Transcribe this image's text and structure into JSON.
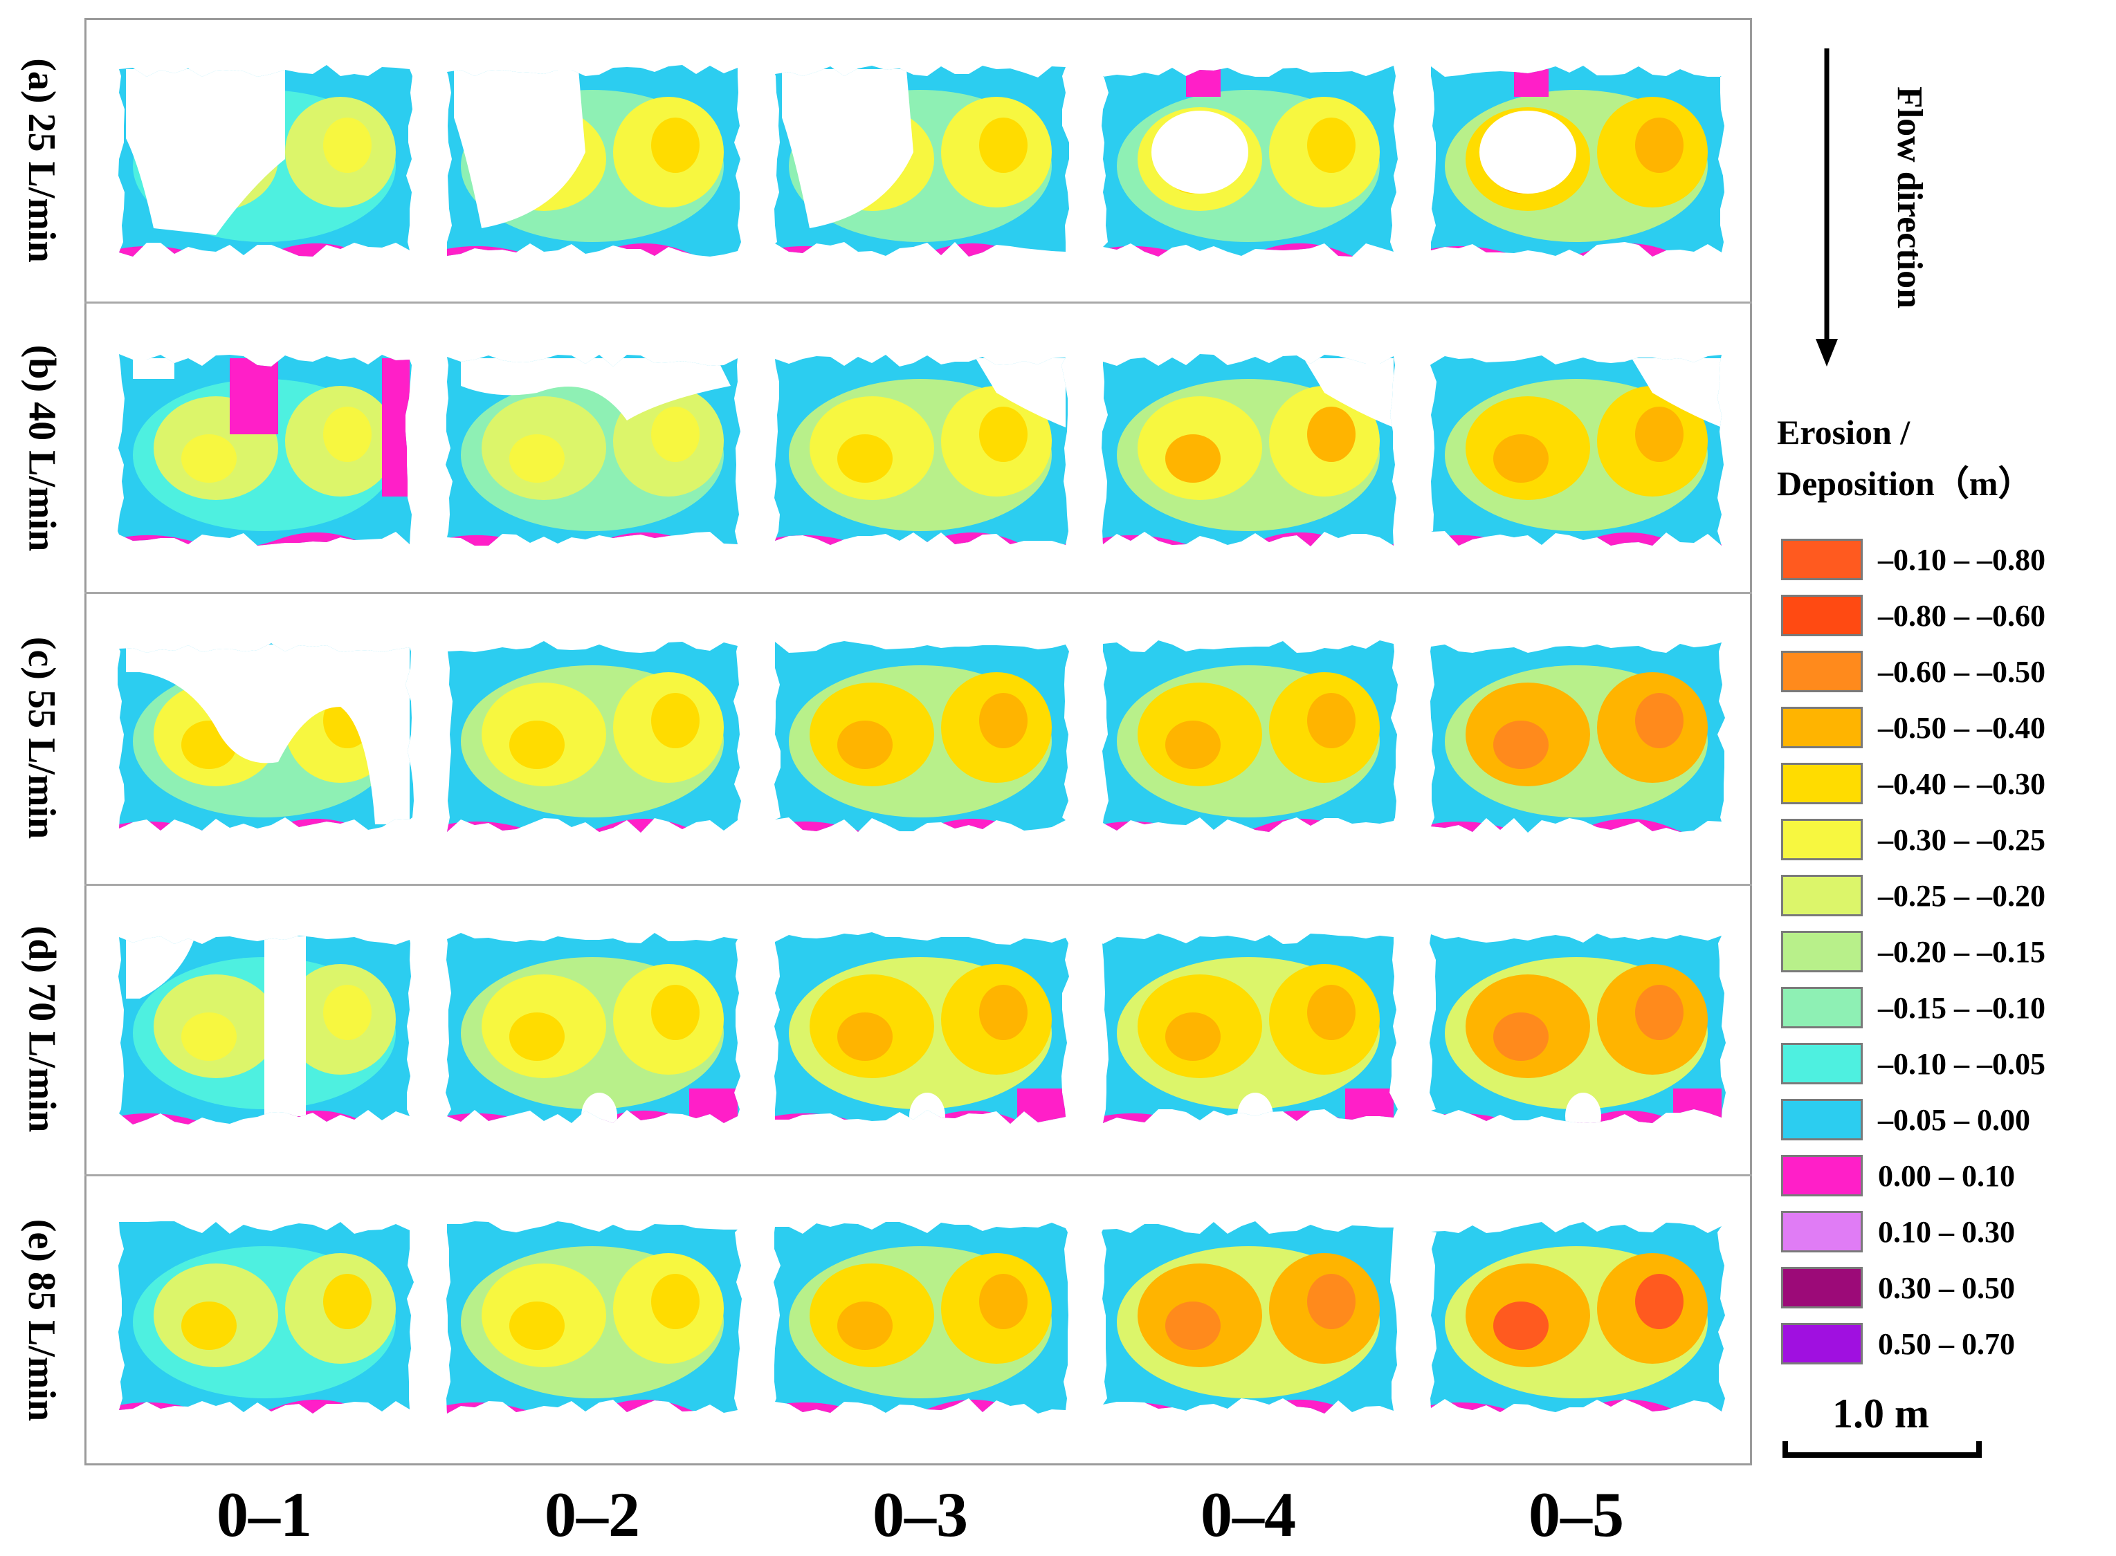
{
  "figure": {
    "rows": [
      {
        "label": "(a) 25 L/min"
      },
      {
        "label": "(b) 40 L/min"
      },
      {
        "label": "(c) 55 L/min"
      },
      {
        "label": "(d) 70 L/min"
      },
      {
        "label": "(e) 85 L/min"
      }
    ],
    "columns": [
      {
        "label": "0–1"
      },
      {
        "label": "0–2"
      },
      {
        "label": "0–3"
      },
      {
        "label": "0–4"
      },
      {
        "label": "0–5"
      }
    ],
    "flow_direction": "Flow direction",
    "legend": {
      "title_line1": "Erosion /",
      "title_line2": "Deposition（m）",
      "items": [
        {
          "label": "–0.10 – –0.80",
          "color": "#ff5a1f"
        },
        {
          "label": "–0.80 – –0.60",
          "color": "#ff4a12"
        },
        {
          "label": "–0.60 – –0.50",
          "color": "#ff8a1c"
        },
        {
          "label": "–0.50 – –0.40",
          "color": "#ffb400"
        },
        {
          "label": "–0.40 – –0.30",
          "color": "#ffdc00"
        },
        {
          "label": "–0.30 – –0.25",
          "color": "#f7f740"
        },
        {
          "label": "–0.25 – –0.20",
          "color": "#dcf56a"
        },
        {
          "label": "–0.20 – –0.15",
          "color": "#b8f08a"
        },
        {
          "label": "–0.15 – –0.10",
          "color": "#8ef0b4"
        },
        {
          "label": "–0.10 – –0.05",
          "color": "#4ef0e0"
        },
        {
          "label": "–0.05 – 0.00",
          "color": "#2ccdf0"
        },
        {
          "label": "0.00 – 0.10",
          "color": "#ff1fc8"
        },
        {
          "label": "0.10 – 0.30",
          "color": "#e07cf5"
        },
        {
          "label": "0.30 – 0.50",
          "color": "#9c0a78"
        },
        {
          "label": "0.50 – 0.70",
          "color": "#a010e0"
        }
      ]
    },
    "scale_bar": {
      "label": "1.0 m"
    },
    "maps": [
      [
        {
          "base": "#2ccdf0",
          "mid": "#4ef0e0",
          "hot": "#dcf56a",
          "core": "#f7f740",
          "dep": "#ff1fc8",
          "holes": "white-heavy"
        },
        {
          "base": "#2ccdf0",
          "mid": "#8ef0b4",
          "hot": "#f7f740",
          "core": "#ffdc00",
          "dep": "#ff1fc8",
          "holes": "white-left"
        },
        {
          "base": "#2ccdf0",
          "mid": "#8ef0b4",
          "hot": "#f7f740",
          "core": "#ffdc00",
          "dep": "#ff1fc8",
          "holes": "white-left"
        },
        {
          "base": "#2ccdf0",
          "mid": "#8ef0b4",
          "hot": "#f7f740",
          "core": "#ffdc00",
          "dep": "#ff1fc8",
          "holes": "white-center"
        },
        {
          "base": "#2ccdf0",
          "mid": "#b8f08a",
          "hot": "#ffdc00",
          "core": "#ffb400",
          "dep": "#ff1fc8",
          "holes": "white-center"
        }
      ],
      [
        {
          "base": "#2ccdf0",
          "mid": "#4ef0e0",
          "hot": "#dcf56a",
          "core": "#f7f740",
          "dep": "#ff1fc8",
          "holes": "magenta-top"
        },
        {
          "base": "#2ccdf0",
          "mid": "#8ef0b4",
          "hot": "#dcf56a",
          "core": "#f7f740",
          "dep": "#ff1fc8",
          "holes": "white-top"
        },
        {
          "base": "#2ccdf0",
          "mid": "#b8f08a",
          "hot": "#f7f740",
          "core": "#ffdc00",
          "dep": "#ff1fc8",
          "holes": "white-top-right"
        },
        {
          "base": "#2ccdf0",
          "mid": "#b8f08a",
          "hot": "#f7f740",
          "core": "#ffb400",
          "dep": "#ff1fc8",
          "holes": "white-top-right"
        },
        {
          "base": "#2ccdf0",
          "mid": "#b8f08a",
          "hot": "#ffdc00",
          "core": "#ffb400",
          "dep": "#ff1fc8",
          "holes": "white-top-right"
        }
      ],
      [
        {
          "base": "#2ccdf0",
          "mid": "#8ef0b4",
          "hot": "#f7f740",
          "core": "#ffdc00",
          "dep": "#ff1fc8",
          "holes": "white-top-u"
        },
        {
          "base": "#2ccdf0",
          "mid": "#b8f08a",
          "hot": "#f7f740",
          "core": "#ffdc00",
          "dep": "#ff1fc8",
          "holes": "none"
        },
        {
          "base": "#2ccdf0",
          "mid": "#b8f08a",
          "hot": "#ffdc00",
          "core": "#ffb400",
          "dep": "#ff1fc8",
          "holes": "none"
        },
        {
          "base": "#2ccdf0",
          "mid": "#b8f08a",
          "hot": "#ffdc00",
          "core": "#ffb400",
          "dep": "#ff1fc8",
          "holes": "none"
        },
        {
          "base": "#2ccdf0",
          "mid": "#b8f08a",
          "hot": "#ffb400",
          "core": "#ff8a1c",
          "dep": "#ff1fc8",
          "holes": "none"
        }
      ],
      [
        {
          "base": "#2ccdf0",
          "mid": "#4ef0e0",
          "hot": "#dcf56a",
          "core": "#f7f740",
          "dep": "#ff1fc8",
          "holes": "white-stripes"
        },
        {
          "base": "#2ccdf0",
          "mid": "#b8f08a",
          "hot": "#f7f740",
          "core": "#ffdc00",
          "dep": "#ff1fc8",
          "holes": "bottom-notch"
        },
        {
          "base": "#2ccdf0",
          "mid": "#dcf56a",
          "hot": "#ffdc00",
          "core": "#ffb400",
          "dep": "#ff1fc8",
          "holes": "bottom-notch"
        },
        {
          "base": "#2ccdf0",
          "mid": "#dcf56a",
          "hot": "#ffdc00",
          "core": "#ffb400",
          "dep": "#ff1fc8",
          "holes": "bottom-notch"
        },
        {
          "base": "#2ccdf0",
          "mid": "#dcf56a",
          "hot": "#ffb400",
          "core": "#ff8a1c",
          "dep": "#ff1fc8",
          "holes": "bottom-notch"
        }
      ],
      [
        {
          "base": "#2ccdf0",
          "mid": "#4ef0e0",
          "hot": "#dcf56a",
          "core": "#ffdc00",
          "dep": "#ff1fc8",
          "holes": "none"
        },
        {
          "base": "#2ccdf0",
          "mid": "#b8f08a",
          "hot": "#f7f740",
          "core": "#ffdc00",
          "dep": "#ff1fc8",
          "holes": "none"
        },
        {
          "base": "#2ccdf0",
          "mid": "#b8f08a",
          "hot": "#ffdc00",
          "core": "#ffb400",
          "dep": "#ff1fc8",
          "holes": "none"
        },
        {
          "base": "#2ccdf0",
          "mid": "#dcf56a",
          "hot": "#ffb400",
          "core": "#ff8a1c",
          "dep": "#ff1fc8",
          "holes": "none"
        },
        {
          "base": "#2ccdf0",
          "mid": "#dcf56a",
          "hot": "#ffb400",
          "core": "#ff5a1f",
          "dep": "#ff1fc8",
          "holes": "none"
        }
      ]
    ]
  }
}
